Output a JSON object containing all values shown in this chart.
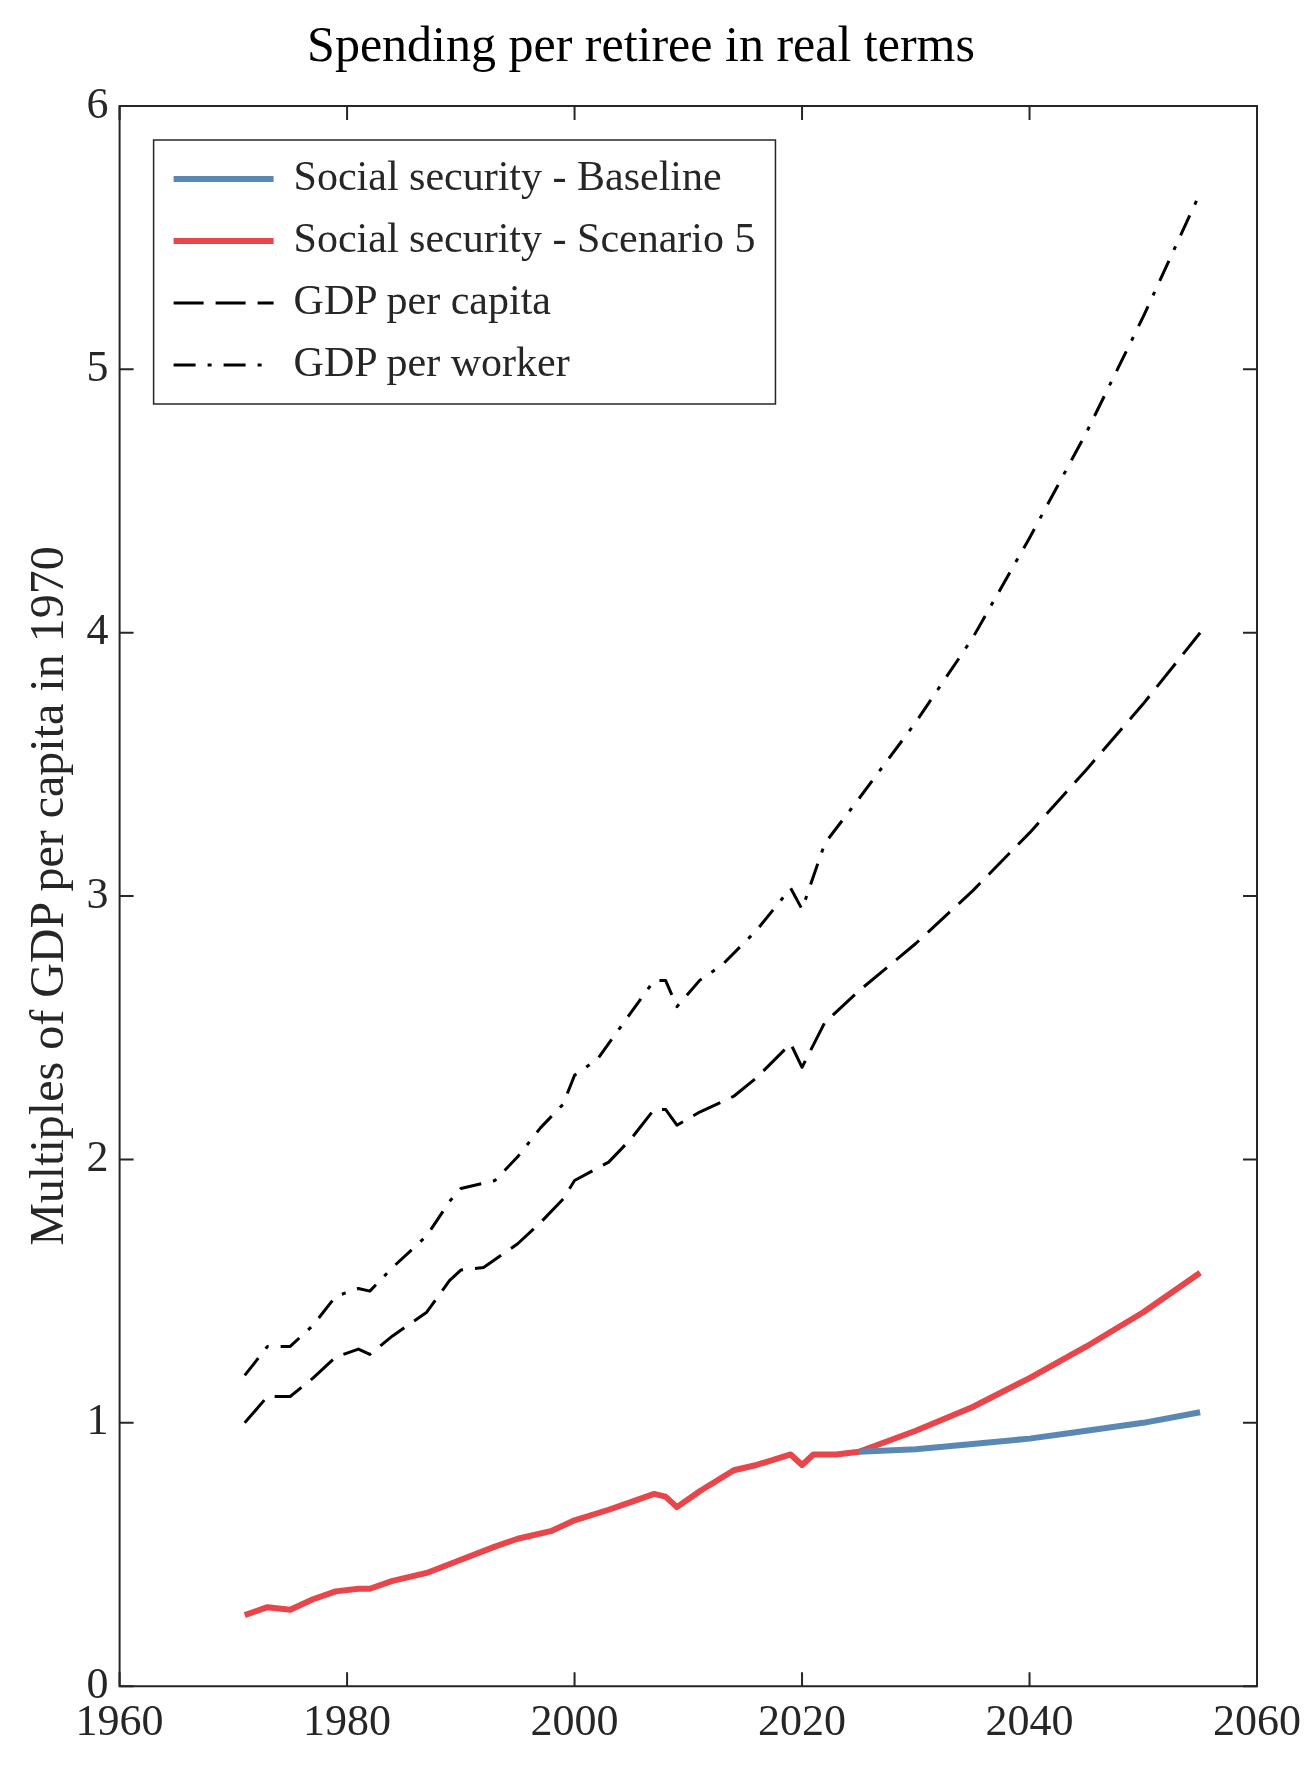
{
  "chart_data": {
    "type": "line",
    "title": "Spending per retiree in real terms",
    "ylabel": "Multiples of GDP per capita in 1970",
    "xlim": [
      1960,
      2060
    ],
    "xticks": [
      1960,
      1980,
      2000,
      2020,
      2040,
      2060
    ],
    "ylim": [
      0,
      6
    ],
    "yticks": [
      0,
      1,
      2,
      3,
      4,
      5,
      6
    ],
    "grid": false,
    "legend": "top left",
    "marker": "none",
    "series": [
      {
        "name": "Social security - Baseline",
        "color": "#5a88b3",
        "line_style": "solid",
        "x": [
          2025,
          2030,
          2035,
          2040,
          2045,
          2050,
          2055
        ],
        "values": [
          0.89,
          0.9,
          0.92,
          0.94,
          0.97,
          1.0,
          1.04
        ]
      },
      {
        "name": "Social security - Scenario 5",
        "color": "#e8464a",
        "line_style": "solid",
        "x": [
          1971,
          1973,
          1975,
          1977,
          1979,
          1981,
          1982,
          1984,
          1987,
          1990,
          1993,
          1995,
          1998,
          2000,
          2003,
          2005,
          2007,
          2008,
          2009,
          2011,
          2014,
          2016,
          2019,
          2020,
          2021,
          2023,
          2025,
          2030,
          2035,
          2040,
          2045,
          2050,
          2055
        ],
        "values": [
          0.27,
          0.3,
          0.29,
          0.33,
          0.36,
          0.37,
          0.37,
          0.4,
          0.43,
          0.48,
          0.53,
          0.56,
          0.59,
          0.63,
          0.67,
          0.7,
          0.73,
          0.72,
          0.68,
          0.74,
          0.82,
          0.84,
          0.88,
          0.84,
          0.88,
          0.88,
          0.89,
          0.97,
          1.06,
          1.17,
          1.29,
          1.42,
          1.57
        ]
      },
      {
        "name": "GDP per capita",
        "color": "#000000",
        "line_style": "dashed",
        "x": [
          1971,
          1973,
          1975,
          1977,
          1979,
          1981,
          1982,
          1984,
          1987,
          1989,
          1990,
          1992,
          1995,
          1997,
          1999,
          2000,
          2003,
          2005,
          2007,
          2008,
          2009,
          2011,
          2014,
          2016,
          2019,
          2020,
          2022,
          2025,
          2030,
          2035,
          2040,
          2045,
          2050,
          2055
        ],
        "values": [
          1.0,
          1.1,
          1.1,
          1.17,
          1.25,
          1.28,
          1.26,
          1.33,
          1.42,
          1.54,
          1.58,
          1.59,
          1.68,
          1.76,
          1.85,
          1.92,
          1.99,
          2.08,
          2.19,
          2.19,
          2.13,
          2.18,
          2.24,
          2.31,
          2.44,
          2.35,
          2.52,
          2.64,
          2.82,
          3.02,
          3.24,
          3.48,
          3.73,
          4.0
        ]
      },
      {
        "name": "GDP per worker",
        "color": "#000000",
        "line_style": "dashdot",
        "x": [
          1971,
          1973,
          1975,
          1977,
          1979,
          1981,
          1982,
          1984,
          1987,
          1989,
          1990,
          1993,
          1995,
          1997,
          1999,
          2000,
          2002,
          2004,
          2007,
          2008,
          2009,
          2011,
          2013,
          2016,
          2019,
          2020,
          2022,
          2025,
          2030,
          2035,
          2040,
          2045,
          2050,
          2055
        ],
        "values": [
          1.18,
          1.29,
          1.29,
          1.37,
          1.48,
          1.51,
          1.5,
          1.59,
          1.71,
          1.84,
          1.89,
          1.92,
          2.01,
          2.12,
          2.21,
          2.32,
          2.38,
          2.5,
          2.68,
          2.68,
          2.58,
          2.68,
          2.74,
          2.87,
          3.03,
          2.95,
          3.2,
          3.37,
          3.66,
          3.98,
          4.36,
          4.76,
          5.2,
          5.67
        ]
      }
    ]
  }
}
